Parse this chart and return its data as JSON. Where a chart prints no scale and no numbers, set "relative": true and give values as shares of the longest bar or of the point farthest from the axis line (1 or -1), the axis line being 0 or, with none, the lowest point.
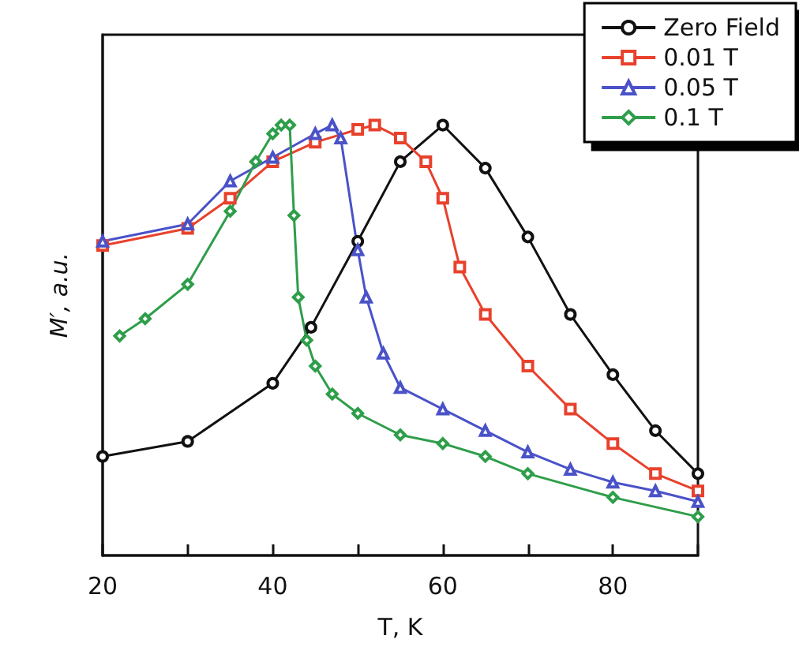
{
  "chart_data": {
    "type": "line",
    "relative": true,
    "xlabel": "T, K",
    "ylabel": "M′, a.u.",
    "xlim": [
      20,
      90
    ],
    "xticks": [
      20,
      {
        "value": 30,
        "label": null
      },
      40,
      {
        "value": 50,
        "label": null
      },
      60,
      {
        "value": 70,
        "label": null
      },
      80,
      {
        "value": 90,
        "label": null
      }
    ],
    "tick_labels": "x",
    "legend": "top right",
    "grid": false,
    "line_style": "solid",
    "series": [
      {
        "name": "Zero Field",
        "color": "#111111",
        "marker": "circle",
        "x": [
          20,
          30,
          40,
          44.5,
          50,
          55,
          60,
          65,
          70,
          75,
          80,
          85,
          90
        ],
        "values": [
          0.23,
          0.265,
          0.4,
          0.53,
          0.73,
          0.915,
          1.0,
          0.9,
          0.74,
          0.56,
          0.42,
          0.29,
          0.19
        ]
      },
      {
        "name": "0.01 T",
        "color": "#e8412c",
        "marker": "square",
        "x": [
          20,
          30,
          35,
          40,
          45,
          50,
          52,
          55,
          58,
          60,
          62,
          65,
          70,
          75,
          80,
          85,
          90
        ],
        "values": [
          0.72,
          0.76,
          0.83,
          0.915,
          0.96,
          0.99,
          1.0,
          0.97,
          0.915,
          0.83,
          0.67,
          0.56,
          0.44,
          0.34,
          0.26,
          0.19,
          0.15
        ]
      },
      {
        "name": "0.05 T",
        "color": "#4a52c8",
        "marker": "triangle",
        "x": [
          20,
          30,
          35,
          40,
          45,
          47,
          48,
          50,
          51,
          53,
          55,
          60,
          65,
          70,
          75,
          80,
          85,
          90
        ],
        "values": [
          0.73,
          0.77,
          0.87,
          0.925,
          0.98,
          1.0,
          0.97,
          0.71,
          0.6,
          0.47,
          0.39,
          0.34,
          0.29,
          0.24,
          0.2,
          0.17,
          0.15,
          0.125
        ]
      },
      {
        "name": "0.1 T",
        "color": "#2e9e4a",
        "marker": "diamond",
        "x": [
          22,
          25,
          30,
          35,
          38,
          40,
          41,
          42,
          42.5,
          43,
          44,
          45,
          47,
          50,
          55,
          60,
          65,
          70,
          80,
          90
        ],
        "values": [
          0.51,
          0.55,
          0.63,
          0.8,
          0.915,
          0.98,
          1.0,
          1.0,
          0.79,
          0.6,
          0.5,
          0.44,
          0.375,
          0.33,
          0.28,
          0.26,
          0.23,
          0.19,
          0.135,
          0.09
        ]
      }
    ]
  }
}
